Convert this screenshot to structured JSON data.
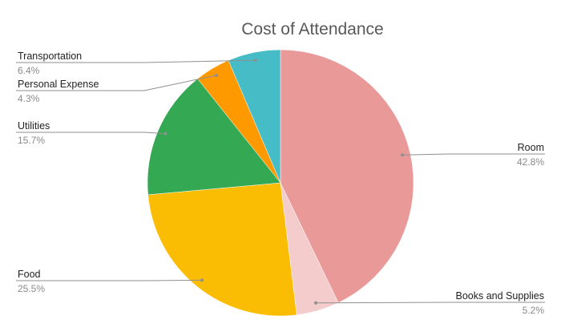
{
  "chart_data": {
    "type": "pie",
    "title": "Cost of Attendance",
    "slices": [
      {
        "label": "Room",
        "value": 42.8,
        "display": "42.8%",
        "color": "#ea9999"
      },
      {
        "label": "Books and Supplies",
        "value": 5.2,
        "display": "5.2%",
        "color": "#f4cccc"
      },
      {
        "label": "Food",
        "value": 25.5,
        "display": "25.5%",
        "color": "#fbbc04"
      },
      {
        "label": "Utilities",
        "value": 15.7,
        "display": "15.7%",
        "color": "#34a853"
      },
      {
        "label": "Personal Expense",
        "value": 4.3,
        "display": "4.3%",
        "color": "#ff9900"
      },
      {
        "label": "Transportation",
        "value": 6.4,
        "display": "6.4%",
        "color": "#46bdc6"
      }
    ],
    "legend": "none",
    "start_angle": "12 o'clock",
    "direction": "clockwise"
  }
}
